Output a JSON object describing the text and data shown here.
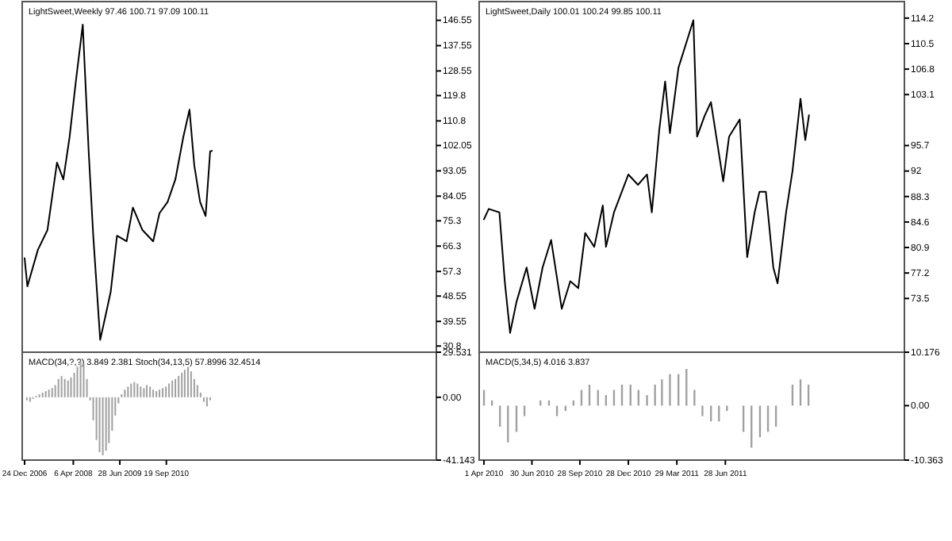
{
  "chart_data": [
    {
      "type": "line",
      "title": "LightSweet,Weekly 97.46 100.71 97.09 100.11",
      "tick_labels": "y",
      "xlim": [
        "2006-12-01",
        "2017-11-01"
      ],
      "ylim": [
        28.6,
        153.2
      ],
      "yticks": [
        146.55,
        137.55,
        128.55,
        119.8,
        110.8,
        102.05,
        93.05,
        84.05,
        75.3,
        66.3,
        57.3,
        48.55,
        39.55,
        30.8
      ],
      "series": [
        {
          "color": "#000000",
          "x": [
            "2006-12-24",
            "2007-01-20",
            "2007-05-01",
            "2007-08-01",
            "2007-11-01",
            "2008-01-01",
            "2008-03-01",
            "2008-05-01",
            "2008-07-06",
            "2008-09-01",
            "2008-10-15",
            "2008-12-21",
            "2009-02-01",
            "2009-04-01",
            "2009-06-01",
            "2009-09-01",
            "2009-11-01",
            "2010-02-01",
            "2010-05-15",
            "2010-07-15",
            "2010-10-01",
            "2010-12-15",
            "2011-03-01",
            "2011-04-30",
            "2011-06-15",
            "2011-08-10",
            "2011-10-02",
            "2011-11-15",
            "2011-12-02"
          ],
          "values": [
            62,
            52,
            65,
            72,
            96,
            90,
            105,
            125,
            145,
            100,
            70,
            33,
            40,
            50,
            70,
            68,
            80,
            72,
            68,
            78,
            82,
            90,
            105,
            114.8,
            95,
            82,
            77,
            100,
            100.11
          ]
        }
      ]
    },
    {
      "type": "bar",
      "title": "MACD(34,?,?) 3.849 2.381 Stoch(34,13,5) 57.8996 32.4514",
      "xlim": [
        "2006-12-01",
        "2017-11-01"
      ],
      "ylim": [
        -41.143,
        29.531
      ],
      "yticks": [
        29.531,
        {
          "value": 0,
          "label": "0.00"
        },
        -41.143
      ],
      "xticks": [
        {
          "value": "2006-12-24",
          "label": "24 Dec 2006"
        },
        {
          "value": "2008-04-06",
          "label": "6 Apr 2008"
        },
        {
          "value": "2009-06-28",
          "label": "28 Jun 2009"
        },
        {
          "value": "2010-09-19",
          "label": "19 Sep 2010"
        }
      ],
      "series": [
        {
          "color": "#a0a0a0",
          "x": [
            "2007-01-15",
            "2007-02-15",
            "2007-03-15",
            "2007-04-15",
            "2007-05-15",
            "2007-06-15",
            "2007-07-15",
            "2007-08-15",
            "2007-09-15",
            "2007-10-15",
            "2007-11-15",
            "2007-12-15",
            "2008-01-15",
            "2008-02-15",
            "2008-03-15",
            "2008-04-15",
            "2008-05-15",
            "2008-06-15",
            "2008-07-15",
            "2008-08-15",
            "2008-09-15",
            "2008-10-15",
            "2008-11-15",
            "2008-12-15",
            "2009-01-15",
            "2009-02-15",
            "2009-03-15",
            "2009-04-15",
            "2009-05-15",
            "2009-06-15",
            "2009-07-15",
            "2009-08-15",
            "2009-09-15",
            "2009-10-15",
            "2009-11-15",
            "2009-12-15",
            "2010-01-15",
            "2010-02-15",
            "2010-03-15",
            "2010-04-15",
            "2010-05-15",
            "2010-06-15",
            "2010-07-15",
            "2010-08-15",
            "2010-09-15",
            "2010-10-15",
            "2010-11-15",
            "2010-12-15",
            "2011-01-15",
            "2011-02-15",
            "2011-03-15",
            "2011-04-15",
            "2011-05-15",
            "2011-06-15",
            "2011-07-15",
            "2011-08-15",
            "2011-09-15",
            "2011-10-15",
            "2011-11-15"
          ],
          "values": [
            -2,
            -3,
            -1,
            1,
            2,
            3,
            4,
            5,
            6,
            8,
            12,
            14,
            12,
            11,
            13,
            16,
            20,
            24,
            22,
            12,
            -2,
            -15,
            -28,
            -36,
            -38,
            -35,
            -30,
            -22,
            -12,
            -4,
            2,
            5,
            7,
            9,
            10,
            9,
            7,
            6,
            8,
            7,
            5,
            4,
            5,
            6,
            7,
            9,
            11,
            12,
            14,
            16,
            18,
            20,
            17,
            12,
            8,
            3,
            -3,
            -6,
            -2
          ]
        }
      ]
    },
    {
      "type": "line",
      "title": "LightSweet,Daily 100.01 100.24 99.85 100.11",
      "tick_labels": "y",
      "xlim": [
        "2010-03-23",
        "2012-05-29"
      ],
      "ylim": [
        65.7,
        116.6
      ],
      "yticks": [
        114.2,
        110.5,
        106.8,
        103.1,
        95.7,
        92,
        88.3,
        84.6,
        80.9,
        77.2,
        73.5
      ],
      "series": [
        {
          "color": "#000000",
          "x": [
            "2010-04-01",
            "2010-04-10",
            "2010-04-30",
            "2010-05-10",
            "2010-05-20",
            "2010-06-01",
            "2010-06-20",
            "2010-07-05",
            "2010-07-20",
            "2010-08-05",
            "2010-08-25",
            "2010-09-10",
            "2010-09-25",
            "2010-10-08",
            "2010-10-25",
            "2010-11-10",
            "2010-11-16",
            "2010-12-01",
            "2010-12-28",
            "2011-01-15",
            "2011-02-01",
            "2011-02-10",
            "2011-02-24",
            "2011-03-07",
            "2011-03-16",
            "2011-04-01",
            "2011-04-29",
            "2011-05-06",
            "2011-05-20",
            "2011-06-01",
            "2011-06-24",
            "2011-07-05",
            "2011-07-25",
            "2011-08-08",
            "2011-08-22",
            "2011-08-31",
            "2011-09-12",
            "2011-09-26",
            "2011-10-04",
            "2011-10-20",
            "2011-11-01",
            "2011-11-16",
            "2011-11-25",
            "2011-12-02"
          ],
          "values": [
            85,
            86.5,
            86,
            76,
            68.5,
            73,
            78,
            72,
            78,
            82,
            72,
            76,
            75,
            83,
            81,
            87,
            81,
            86,
            91.5,
            90,
            91.5,
            86,
            98,
            105,
            97.5,
            107,
            113.9,
            97,
            100,
            102,
            90.5,
            97,
            99.5,
            79.5,
            86,
            89,
            89,
            78,
            75.7,
            86,
            92,
            102.5,
            96.5,
            100.11
          ]
        }
      ]
    },
    {
      "type": "bar",
      "title": "MACD(5,34,5) 4.016 3.837",
      "xlim": [
        "2010-03-23",
        "2012-05-29"
      ],
      "ylim": [
        -10.363,
        10.176
      ],
      "yticks": [
        10.176,
        {
          "value": 0,
          "label": "0.00"
        },
        -10.363
      ],
      "xticks": [
        {
          "value": "2010-04-01",
          "label": "1 Apr 2010"
        },
        {
          "value": "2010-06-30",
          "label": "30 Jun 2010"
        },
        {
          "value": "2010-09-28",
          "label": "28 Sep 2010"
        },
        {
          "value": "2010-12-28",
          "label": "28 Dec 2010"
        },
        {
          "value": "2011-03-29",
          "label": "29 Mar 2011"
        },
        {
          "value": "2011-06-28",
          "label": "28 Jun 2011"
        }
      ],
      "series": [
        {
          "color": "#a0a0a0",
          "x": [
            "2010-04-01",
            "2010-04-16",
            "2010-05-01",
            "2010-05-16",
            "2010-06-01",
            "2010-06-16",
            "2010-07-01",
            "2010-07-16",
            "2010-08-01",
            "2010-08-16",
            "2010-09-01",
            "2010-09-16",
            "2010-10-01",
            "2010-10-16",
            "2010-11-01",
            "2010-11-16",
            "2010-12-01",
            "2010-12-16",
            "2011-01-01",
            "2011-01-16",
            "2011-02-01",
            "2011-02-16",
            "2011-03-01",
            "2011-03-16",
            "2011-04-01",
            "2011-04-16",
            "2011-05-01",
            "2011-05-16",
            "2011-06-01",
            "2011-06-16",
            "2011-07-01",
            "2011-07-16",
            "2011-08-01",
            "2011-08-16",
            "2011-09-01",
            "2011-09-16",
            "2011-10-01",
            "2011-10-16",
            "2011-11-01",
            "2011-11-16",
            "2011-12-01"
          ],
          "values": [
            3,
            1,
            -4,
            -7,
            -5,
            -2,
            0,
            1,
            1,
            -2,
            -1,
            1,
            3,
            4,
            3,
            2,
            3,
            4,
            4,
            3,
            2,
            4,
            5,
            6,
            6,
            7,
            3,
            -2,
            -3,
            -3,
            -1,
            0,
            -5,
            -8,
            -6,
            -5,
            -4,
            0,
            4,
            5,
            4
          ]
        }
      ]
    }
  ]
}
